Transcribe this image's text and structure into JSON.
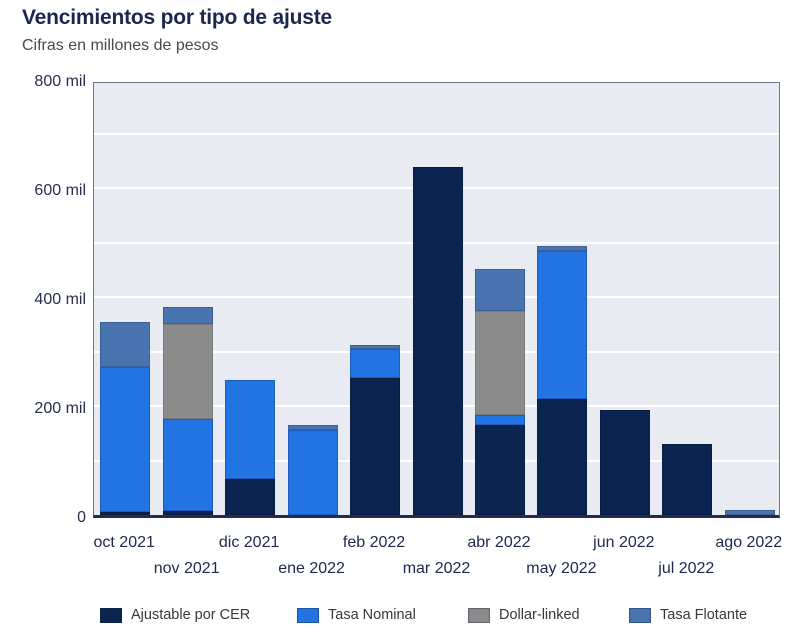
{
  "header": {
    "title": "Vencimientos por tipo de ajuste",
    "subtitle": "Cifras en millones de pesos"
  },
  "chart_data": {
    "type": "bar",
    "stacked": true,
    "title": "Vencimientos por tipo de ajuste",
    "subtitle": "Cifras en millones de pesos",
    "unit": "millones de pesos (mil = miles de millones)",
    "categories": [
      "oct 2021",
      "nov 2021",
      "dic 2021",
      "ene 2022",
      "feb 2022",
      "mar 2022",
      "abr 2022",
      "may 2022",
      "jun 2022",
      "jul 2022",
      "ago 2022"
    ],
    "series": [
      {
        "name": "Ajustable por CER",
        "color": "#0c2450",
        "border": "#0a1d40",
        "values": [
          5,
          8,
          66,
          0,
          252,
          638,
          165,
          213,
          193,
          130,
          0
        ]
      },
      {
        "name": "Tasa Nominal",
        "color": "#2174e2",
        "border": "#1a5cc0",
        "values": [
          267,
          168,
          182,
          156,
          53,
          0,
          18,
          272,
          0,
          0,
          0
        ]
      },
      {
        "name": "Dollar-linked",
        "color": "#8b8b8b",
        "border": "#7b7b7b",
        "values": [
          0,
          174,
          0,
          0,
          0,
          0,
          191,
          0,
          0,
          0,
          0
        ]
      },
      {
        "name": "Tasa Flotante",
        "color": "#4a74b0",
        "border": "#3c6096",
        "values": [
          82,
          32,
          0,
          9,
          7,
          0,
          77,
          9,
          0,
          0,
          9
        ]
      }
    ],
    "totals": [
      354,
      382,
      248,
      165,
      312,
      638,
      451,
      494,
      193,
      130,
      9
    ],
    "ylim": [
      0,
      800
    ],
    "yticks": [
      {
        "value": 0,
        "label": "0"
      },
      {
        "value": 200,
        "label": "200 mil"
      },
      {
        "value": 400,
        "label": "400 mil"
      },
      {
        "value": 600,
        "label": "600 mil"
      },
      {
        "value": 800,
        "label": "800 mil"
      }
    ],
    "gridline_interval": 100,
    "grid": "on",
    "grid_color": "#ffffff",
    "plot_bg": "#e8ebf1",
    "legend_position": "bottom",
    "xlabel": "",
    "ylabel": ""
  }
}
